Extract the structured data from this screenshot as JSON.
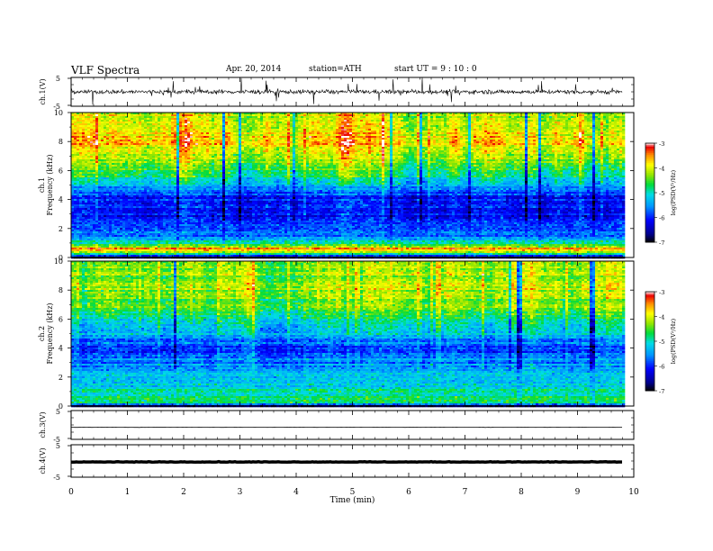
{
  "header": {
    "title": "VLF  Spectra",
    "date": "Apr. 20, 2014",
    "station": "station=ATH",
    "start": "start  UT  =   9  : 10 : 0"
  },
  "chart_data": [
    {
      "type": "line",
      "panel": "ch1-waveform",
      "ylabel": "ch.1(V)",
      "yticks": [
        "5",
        "-5"
      ],
      "ylim": [
        -5,
        5
      ],
      "xlim": [
        0,
        10
      ],
      "x_end": 9.8,
      "series": [
        {
          "description": "noisy waveform, baseline ~ 0 V, spikes to about ±5 V",
          "baseline": 0
        }
      ]
    },
    {
      "type": "heatmap",
      "panel": "ch1-spectrogram",
      "ylabel_lines": [
        "ch.1",
        "Frequency  (kHz)"
      ],
      "yticks": [
        "0",
        "2",
        "4",
        "6",
        "8",
        "10"
      ],
      "ylim": [
        0,
        10
      ],
      "xlim": [
        0,
        10
      ],
      "x_end": 9.8,
      "colorbar": {
        "label": "log(PSD(V²/Hz)",
        "ticks": [
          "-3",
          "-4",
          "-5",
          "-6",
          "-7"
        ],
        "range": [
          -7,
          -3
        ]
      },
      "profile": [
        {
          "f": 0.0,
          "v": -6.9
        },
        {
          "f": 0.3,
          "v": -4.4
        },
        {
          "f": 0.6,
          "v": -3.4
        },
        {
          "f": 1.0,
          "v": -5.0
        },
        {
          "f": 1.6,
          "v": -5.7
        },
        {
          "f": 2.4,
          "v": -5.9
        },
        {
          "f": 3.2,
          "v": -6.2
        },
        {
          "f": 4.0,
          "v": -6.1
        },
        {
          "f": 4.8,
          "v": -5.6
        },
        {
          "f": 5.6,
          "v": -4.9
        },
        {
          "f": 6.4,
          "v": -4.4
        },
        {
          "f": 7.2,
          "v": -4.0
        },
        {
          "f": 8.0,
          "v": -3.8
        },
        {
          "f": 9.0,
          "v": -3.9
        },
        {
          "f": 10.0,
          "v": -4.1
        }
      ]
    },
    {
      "type": "heatmap",
      "panel": "ch2-spectrogram",
      "ylabel_lines": [
        "ch.2",
        "Frequency  (kHz)"
      ],
      "yticks": [
        "0",
        "2",
        "4",
        "6",
        "8",
        "10"
      ],
      "ylim": [
        0,
        10
      ],
      "xlim": [
        0,
        10
      ],
      "x_end": 9.8,
      "colorbar": {
        "label": "log(PSD(V²/Hz)",
        "ticks": [
          "-3",
          "-4",
          "-5",
          "-6",
          "-7"
        ],
        "range": [
          -7,
          -3
        ]
      },
      "profile": [
        {
          "f": 0.0,
          "v": -6.6
        },
        {
          "f": 0.3,
          "v": -4.6
        },
        {
          "f": 0.8,
          "v": -4.9
        },
        {
          "f": 1.5,
          "v": -5.2
        },
        {
          "f": 2.4,
          "v": -5.3
        },
        {
          "f": 3.3,
          "v": -5.6
        },
        {
          "f": 4.2,
          "v": -5.8
        },
        {
          "f": 5.0,
          "v": -5.1
        },
        {
          "f": 6.0,
          "v": -4.6
        },
        {
          "f": 7.0,
          "v": -4.2
        },
        {
          "f": 8.0,
          "v": -4.0
        },
        {
          "f": 9.0,
          "v": -4.1
        },
        {
          "f": 10.0,
          "v": -4.2
        }
      ]
    },
    {
      "type": "line",
      "panel": "ch3-waveform",
      "ylabel": "ch.3(V)",
      "yticks": [
        "5",
        "-5"
      ],
      "ylim": [
        -5,
        5
      ],
      "xlim": [
        0,
        10
      ],
      "x_end": 9.8,
      "series": [
        {
          "description": "flat trace",
          "baseline": -0.8
        }
      ]
    },
    {
      "type": "line",
      "panel": "ch4-waveform",
      "ylabel": "ch.4(V)",
      "yticks": [
        "5",
        "-5"
      ],
      "ylim": [
        -5,
        5
      ],
      "xlim": [
        0,
        10
      ],
      "x_end": 9.8,
      "series": [
        {
          "description": "flat thick trace",
          "baseline": -0.3
        }
      ]
    }
  ],
  "xaxis": {
    "label": "Time  (min)",
    "ticks": [
      "0",
      "1",
      "2",
      "3",
      "4",
      "5",
      "6",
      "7",
      "8",
      "9",
      "10"
    ]
  }
}
